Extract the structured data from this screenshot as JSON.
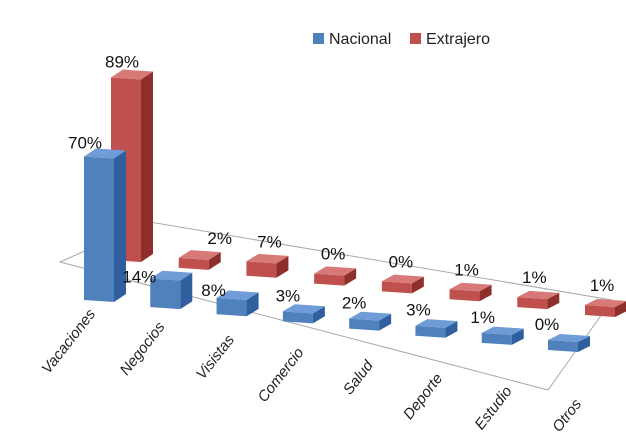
{
  "chart_data": {
    "type": "bar",
    "categories": [
      "Vacaciones",
      "Negocios",
      "Visistas",
      "Comercio",
      "Salud",
      "Deporte",
      "Estudio",
      "Otros"
    ],
    "series": [
      {
        "name": "Nacional",
        "values": [
          70,
          14,
          8,
          3,
          2,
          3,
          1,
          0
        ],
        "labels": [
          "70%",
          "14%",
          "8%",
          "3%",
          "2%",
          "3%",
          "1%",
          "0%"
        ]
      },
      {
        "name": "Extrajero",
        "values": [
          89,
          2,
          7,
          0,
          0,
          1,
          1,
          1
        ],
        "labels": [
          "89%",
          "2%",
          "7%",
          "0%",
          "0%",
          "1%",
          "1%",
          "1%"
        ]
      }
    ],
    "value_suffix": "%",
    "legend_position": "top-right",
    "grid": false,
    "style": "3d-clustered-columns",
    "colors": {
      "series": [
        "#4f81bd",
        "#c0504d"
      ],
      "series_top": [
        "#6f9bd6",
        "#d77a77"
      ],
      "series_side": [
        "#2f5f9e",
        "#8f2f2c"
      ]
    }
  }
}
